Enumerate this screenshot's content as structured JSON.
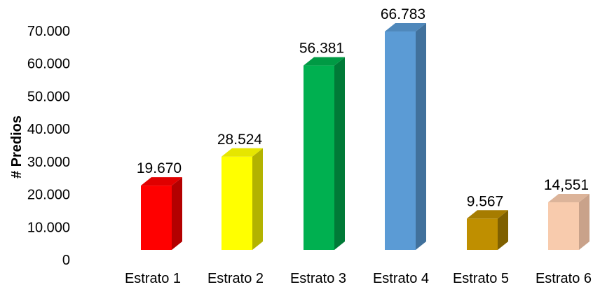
{
  "chart_data": {
    "type": "bar",
    "style": "3d-column",
    "ylabel": "# Predios",
    "xlabel": "",
    "ylim": [
      0,
      70000
    ],
    "yticks": [
      0,
      10000,
      20000,
      30000,
      40000,
      50000,
      60000,
      70000
    ],
    "ytick_labels": [
      "0",
      "10.000",
      "20.000",
      "30.000",
      "40.000",
      "50.000",
      "60.000",
      "70.000"
    ],
    "grid": false,
    "legend": "none",
    "categories": [
      "Estrato 1",
      "Estrato 2",
      "Estrato 3",
      "Estrato 4",
      "Estrato 5",
      "Estrato 6"
    ],
    "values": [
      19670,
      28524,
      56381,
      66783,
      9567,
      14551
    ],
    "value_labels": [
      "19.670",
      "28.524",
      "56.381",
      "66.783",
      "9.567",
      "14,551"
    ],
    "colors": [
      {
        "front": "#ff0000",
        "side": "#b30000",
        "top": "#e00000"
      },
      {
        "front": "#ffff00",
        "side": "#b3b300",
        "top": "#e6e600"
      },
      {
        "front": "#00b050",
        "side": "#007a37",
        "top": "#009a44"
      },
      {
        "front": "#5b9bd5",
        "side": "#41719c",
        "top": "#4f88bb"
      },
      {
        "front": "#bf8f00",
        "side": "#7f6000",
        "top": "#a67c00"
      },
      {
        "front": "#f8cbad",
        "side": "#c9a28a",
        "top": "#dcb49a"
      }
    ]
  }
}
